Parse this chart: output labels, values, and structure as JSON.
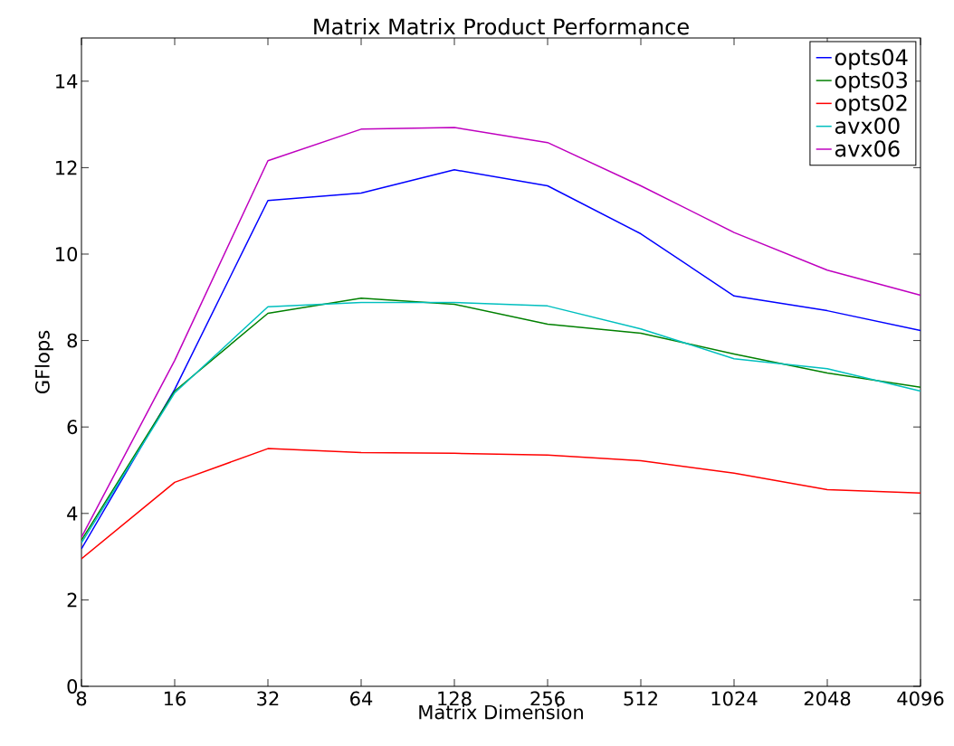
{
  "chart_data": {
    "type": "line",
    "title": "Matrix Matrix Product Performance",
    "xlabel": "Matrix Dimension",
    "ylabel": "GFlops",
    "categories": [
      "8",
      "16",
      "32",
      "64",
      "128",
      "256",
      "512",
      "1024",
      "2048",
      "4096"
    ],
    "series": [
      {
        "name": "opts04",
        "color": "#0000ff",
        "values": [
          3.18,
          6.87,
          11.24,
          11.41,
          11.95,
          11.58,
          10.47,
          9.03,
          8.69,
          8.23
        ]
      },
      {
        "name": "opts03",
        "color": "#008000",
        "values": [
          3.38,
          6.83,
          8.63,
          8.98,
          8.84,
          8.38,
          8.17,
          7.69,
          7.25,
          6.92
        ]
      },
      {
        "name": "opts02",
        "color": "#ff0000",
        "values": [
          2.95,
          4.72,
          5.5,
          5.41,
          5.39,
          5.35,
          5.22,
          4.93,
          4.55,
          4.47
        ]
      },
      {
        "name": "avx00",
        "color": "#00bfbf",
        "values": [
          3.32,
          6.79,
          8.78,
          8.88,
          8.88,
          8.8,
          8.27,
          7.58,
          7.35,
          6.83
        ]
      },
      {
        "name": "avx06",
        "color": "#bf00bf",
        "values": [
          3.45,
          7.54,
          12.16,
          12.89,
          12.93,
          12.58,
          11.58,
          10.5,
          9.63,
          9.05
        ]
      }
    ],
    "ylim": [
      0,
      15
    ],
    "yticks": [
      0,
      2,
      4,
      6,
      8,
      10,
      12,
      14
    ],
    "legend": "top right",
    "grid": false,
    "marker": "none",
    "line_style": "solid"
  }
}
